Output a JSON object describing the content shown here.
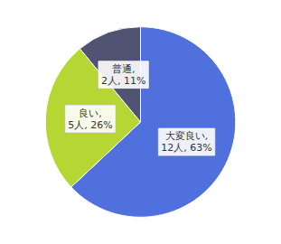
{
  "chart_data": {
    "type": "pie",
    "values": [
      63,
      26,
      11
    ],
    "value_labels": [
      "大変良い,\n12人, 63%",
      "良い,\n5人, 26%",
      "普通,\n2人, 11%"
    ],
    "data_labels": true
  }
}
